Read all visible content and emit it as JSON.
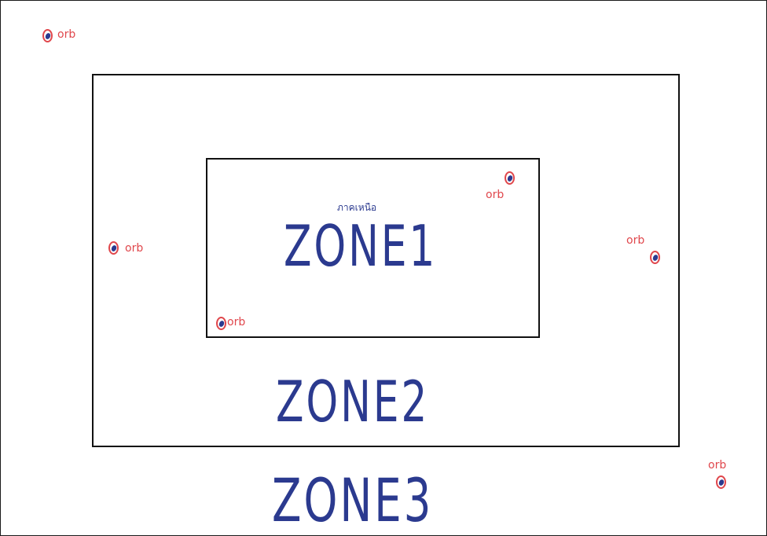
{
  "zones": [
    {
      "id": "zone3",
      "label": "ZONE3"
    },
    {
      "id": "zone2",
      "label": "ZONE2"
    },
    {
      "id": "zone1",
      "label": "ZONE1"
    }
  ],
  "zone1_note": "ภาคเหนือ",
  "orbs": [
    {
      "label": "orb"
    },
    {
      "label": "orb"
    },
    {
      "label": "orb"
    },
    {
      "label": "orb"
    },
    {
      "label": "orb"
    },
    {
      "label": "orb"
    }
  ],
  "colors": {
    "zone_ink": "#2b3a8f",
    "orb_ink": "#e0474c",
    "frame": "#111111"
  }
}
